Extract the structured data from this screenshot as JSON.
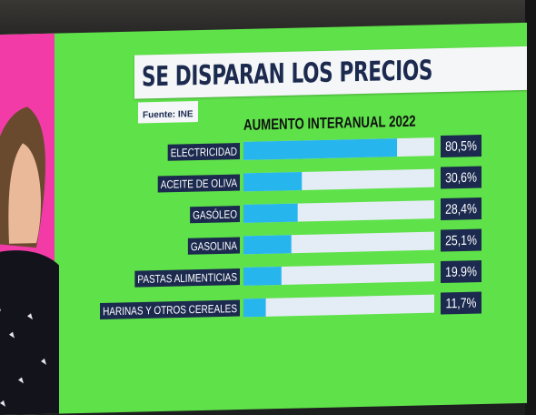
{
  "header": {
    "title": "SE DISPARAN LOS PRECIOS",
    "source": "Fuente: INE"
  },
  "chart_data": {
    "type": "bar",
    "orientation": "horizontal",
    "title": "AUMENTO INTERANUAL 2022",
    "categories": [
      "ELECTRICIDAD",
      "ACEITE DE OLIVA",
      "GASÓLEO",
      "GASOLINA",
      "PASTAS ALIMENTICIAS",
      "HARINAS Y OTROS CEREALES"
    ],
    "values": [
      80.5,
      30.6,
      28.4,
      25.1,
      19.9,
      11.7
    ],
    "value_labels": [
      "80,5%",
      "30,6%",
      "28,4%",
      "25,1%",
      "19.9%",
      "11,7%"
    ],
    "xlim": [
      0,
      100
    ],
    "grid": false,
    "colors": {
      "bar_fill": "#27b5ee",
      "bar_track": "#e4ecf5",
      "label_bg": "#1b2a4e",
      "label_text": "#ffffff",
      "background": "#5fe14a"
    }
  }
}
